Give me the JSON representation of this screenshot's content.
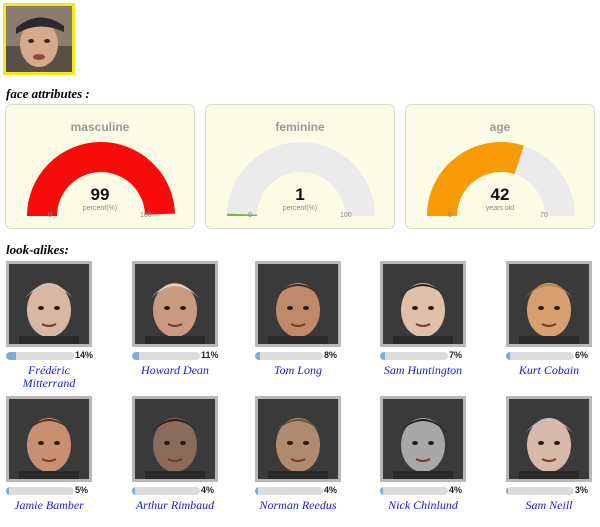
{
  "section_titles": {
    "face_attributes": "face attributes :",
    "look_alikes": "look-alikes:"
  },
  "gauges": [
    {
      "title": "masculine",
      "value": 99,
      "display": "99",
      "unit": "percent(%)",
      "min": "0",
      "max": "100",
      "max_value": 100,
      "color": "#f80b0b"
    },
    {
      "title": "feminine",
      "value": 1,
      "display": "1",
      "unit": "percent(%)",
      "min": "0",
      "max": "100",
      "max_value": 100,
      "color": "#7ab92c"
    },
    {
      "title": "age",
      "value": 42,
      "display": "42",
      "unit": "years old",
      "min": "0",
      "max": "70",
      "max_value": 70,
      "color": "#f89a06"
    }
  ],
  "look_alikes": [
    {
      "name": "Frédéric Mitterrand",
      "percent": "14%",
      "value": 14
    },
    {
      "name": "Howard Dean",
      "percent": "11%",
      "value": 11
    },
    {
      "name": "Tom Long",
      "percent": "8%",
      "value": 8
    },
    {
      "name": "Sam Huntington",
      "percent": "7%",
      "value": 7
    },
    {
      "name": "Kurt Cobain",
      "percent": "6%",
      "value": 6
    },
    {
      "name": "Jamie Bamber",
      "percent": "5%",
      "value": 5
    },
    {
      "name": "Arthur Rimbaud",
      "percent": "4%",
      "value": 4
    },
    {
      "name": "Norman Reedus",
      "percent": "4%",
      "value": 4
    },
    {
      "name": "Nick Chinlund",
      "percent": "4%",
      "value": 4
    },
    {
      "name": "Sam Neill",
      "percent": "3%",
      "value": 3
    }
  ],
  "colors": {
    "gauge_track": "#ebebeb",
    "bar_fill": "#7aaed6",
    "link": "#1a1ad4",
    "upload_border": "#f5e81c"
  }
}
